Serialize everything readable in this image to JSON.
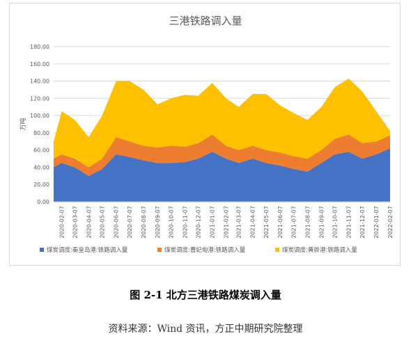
{
  "chart_data": {
    "type": "area",
    "stacked": true,
    "title": "三港铁路调入量",
    "ylabel": "万吨",
    "ylim": [
      0,
      180
    ],
    "yticks": [
      "0.00",
      "20.00",
      "40.00",
      "60.00",
      "80.00",
      "100.00",
      "120.00",
      "140.00",
      "160.00",
      "180.00"
    ],
    "xticks": [
      "2020-02-07",
      "2020-03-07",
      "2020-04-07",
      "2020-05-07",
      "2020-06-07",
      "2020-07-07",
      "2020-08-07",
      "2020-09-07",
      "2020-10-07",
      "2020-11-07",
      "2020-12-07",
      "2021-01-07",
      "2021-02-07",
      "2021-03-07",
      "2021-04-07",
      "2021-05-07",
      "2021-06-07",
      "2021-07-07",
      "2021-08-07",
      "2021-09-07",
      "2021-10-07",
      "2021-11-07",
      "2021-12-07",
      "2022-01-07",
      "2022-02-07"
    ],
    "x": [
      "2020-01-20",
      "2020-02-07",
      "2020-03-07",
      "2020-04-07",
      "2020-05-07",
      "2020-06-07",
      "2020-07-07",
      "2020-08-07",
      "2020-09-07",
      "2020-10-07",
      "2020-11-07",
      "2020-12-07",
      "2021-01-07",
      "2021-02-07",
      "2021-03-07",
      "2021-04-07",
      "2021-05-07",
      "2021-06-07",
      "2021-07-07",
      "2021-08-07",
      "2021-09-07",
      "2021-10-07",
      "2021-11-07",
      "2021-12-07",
      "2022-01-07",
      "2022-02-07"
    ],
    "series": [
      {
        "name": "煤炭调度:秦皇岛港:铁路调入量",
        "color": "#4472C4",
        "values": [
          40,
          45,
          40,
          30,
          38,
          55,
          52,
          48,
          45,
          45,
          46,
          50,
          58,
          50,
          45,
          50,
          45,
          42,
          38,
          35,
          45,
          55,
          58,
          50,
          55,
          62
        ]
      },
      {
        "name": "煤炭调度:曹妃甸港:铁路调入量",
        "color": "#ED7D31",
        "values": [
          10,
          10,
          10,
          10,
          12,
          20,
          18,
          17,
          18,
          20,
          18,
          18,
          20,
          15,
          15,
          15,
          15,
          15,
          15,
          15,
          15,
          18,
          20,
          18,
          15,
          15
        ]
      },
      {
        "name": "煤炭调度:黄骅港:铁路调入量",
        "color": "#FFC000",
        "values": [
          20,
          50,
          45,
          35,
          50,
          65,
          70,
          65,
          50,
          55,
          60,
          55,
          60,
          55,
          50,
          60,
          65,
          55,
          50,
          45,
          50,
          60,
          65,
          60,
          35,
          5
        ]
      }
    ],
    "legend": "bottom",
    "grid": true
  },
  "figure_caption": "图 2-1  北方三港铁路煤炭调入量",
  "source_note": "资料来源：Wind 资讯，方正中期研究院整理"
}
